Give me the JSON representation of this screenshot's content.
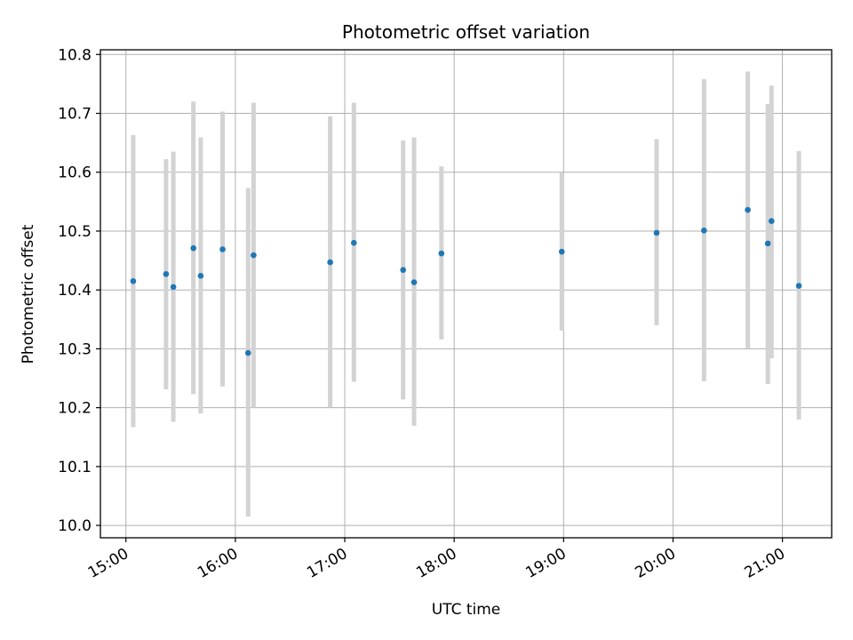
{
  "chart_data": {
    "type": "scatter",
    "title": "Photometric offset variation",
    "xlabel": "UTC time",
    "ylabel": "Photometric offset",
    "x_ticks": [
      "15:00",
      "16:00",
      "17:00",
      "18:00",
      "19:00",
      "20:00",
      "21:00"
    ],
    "y_ticks": [
      "10.0",
      "10.1",
      "10.2",
      "10.3",
      "10.4",
      "10.5",
      "10.6",
      "10.7",
      "10.8"
    ],
    "xlim": [
      "14:46",
      "21:27"
    ],
    "ylim": [
      9.979,
      10.808
    ],
    "grid": true,
    "marker_color": "#1f77b4",
    "errorbar_color": "#d3d3d3",
    "points": [
      {
        "time": "15:04",
        "value": 10.415,
        "low": 10.167,
        "high": 10.663
      },
      {
        "time": "15:22",
        "value": 10.427,
        "low": 10.231,
        "high": 10.622
      },
      {
        "time": "15:26",
        "value": 10.405,
        "low": 10.176,
        "high": 10.635
      },
      {
        "time": "15:37",
        "value": 10.471,
        "low": 10.223,
        "high": 10.72
      },
      {
        "time": "15:41",
        "value": 10.424,
        "low": 10.19,
        "high": 10.659
      },
      {
        "time": "15:53",
        "value": 10.469,
        "low": 10.236,
        "high": 10.703
      },
      {
        "time": "16:07",
        "value": 10.293,
        "low": 10.015,
        "high": 10.573
      },
      {
        "time": "16:10",
        "value": 10.459,
        "low": 10.2,
        "high": 10.718
      },
      {
        "time": "16:52",
        "value": 10.447,
        "low": 10.2,
        "high": 10.695
      },
      {
        "time": "17:05",
        "value": 10.48,
        "low": 10.244,
        "high": 10.718
      },
      {
        "time": "17:32",
        "value": 10.434,
        "low": 10.214,
        "high": 10.654
      },
      {
        "time": "17:38",
        "value": 10.413,
        "low": 10.169,
        "high": 10.659
      },
      {
        "time": "17:53",
        "value": 10.462,
        "low": 10.316,
        "high": 10.61
      },
      {
        "time": "18:59",
        "value": 10.465,
        "low": 10.331,
        "high": 10.599
      },
      {
        "time": "19:51",
        "value": 10.497,
        "low": 10.34,
        "high": 10.656
      },
      {
        "time": "20:17",
        "value": 10.501,
        "low": 10.245,
        "high": 10.758
      },
      {
        "time": "20:41",
        "value": 10.536,
        "low": 10.301,
        "high": 10.771
      },
      {
        "time": "20:52",
        "value": 10.479,
        "low": 10.24,
        "high": 10.716
      },
      {
        "time": "20:54",
        "value": 10.517,
        "low": 10.284,
        "high": 10.747
      },
      {
        "time": "21:09",
        "value": 10.407,
        "low": 10.18,
        "high": 10.636
      }
    ]
  }
}
